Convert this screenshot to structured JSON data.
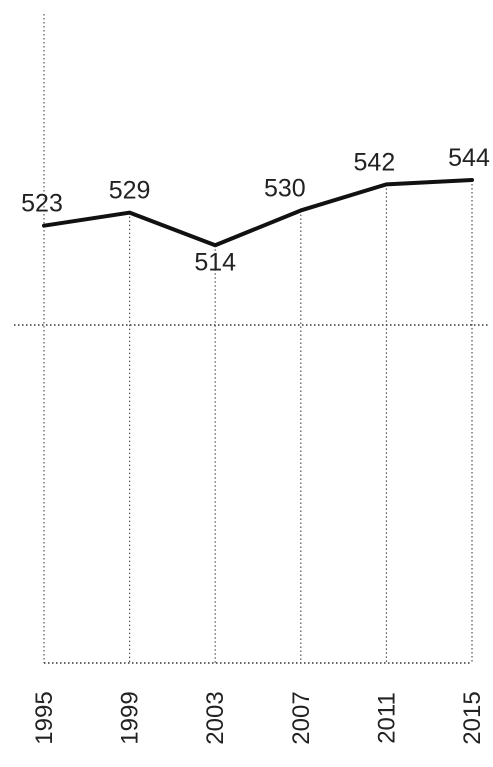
{
  "chart_data": {
    "type": "line",
    "categories": [
      "1995",
      "1999",
      "2003",
      "2007",
      "2011",
      "2015"
    ],
    "values": [
      523,
      529,
      514,
      530,
      542,
      544
    ],
    "data_labels": [
      "523",
      "529",
      "514",
      "530",
      "542",
      "544"
    ],
    "title": "",
    "xlabel": "",
    "ylabel": "",
    "grid": true,
    "legend": "none",
    "line_color": "#111111"
  }
}
